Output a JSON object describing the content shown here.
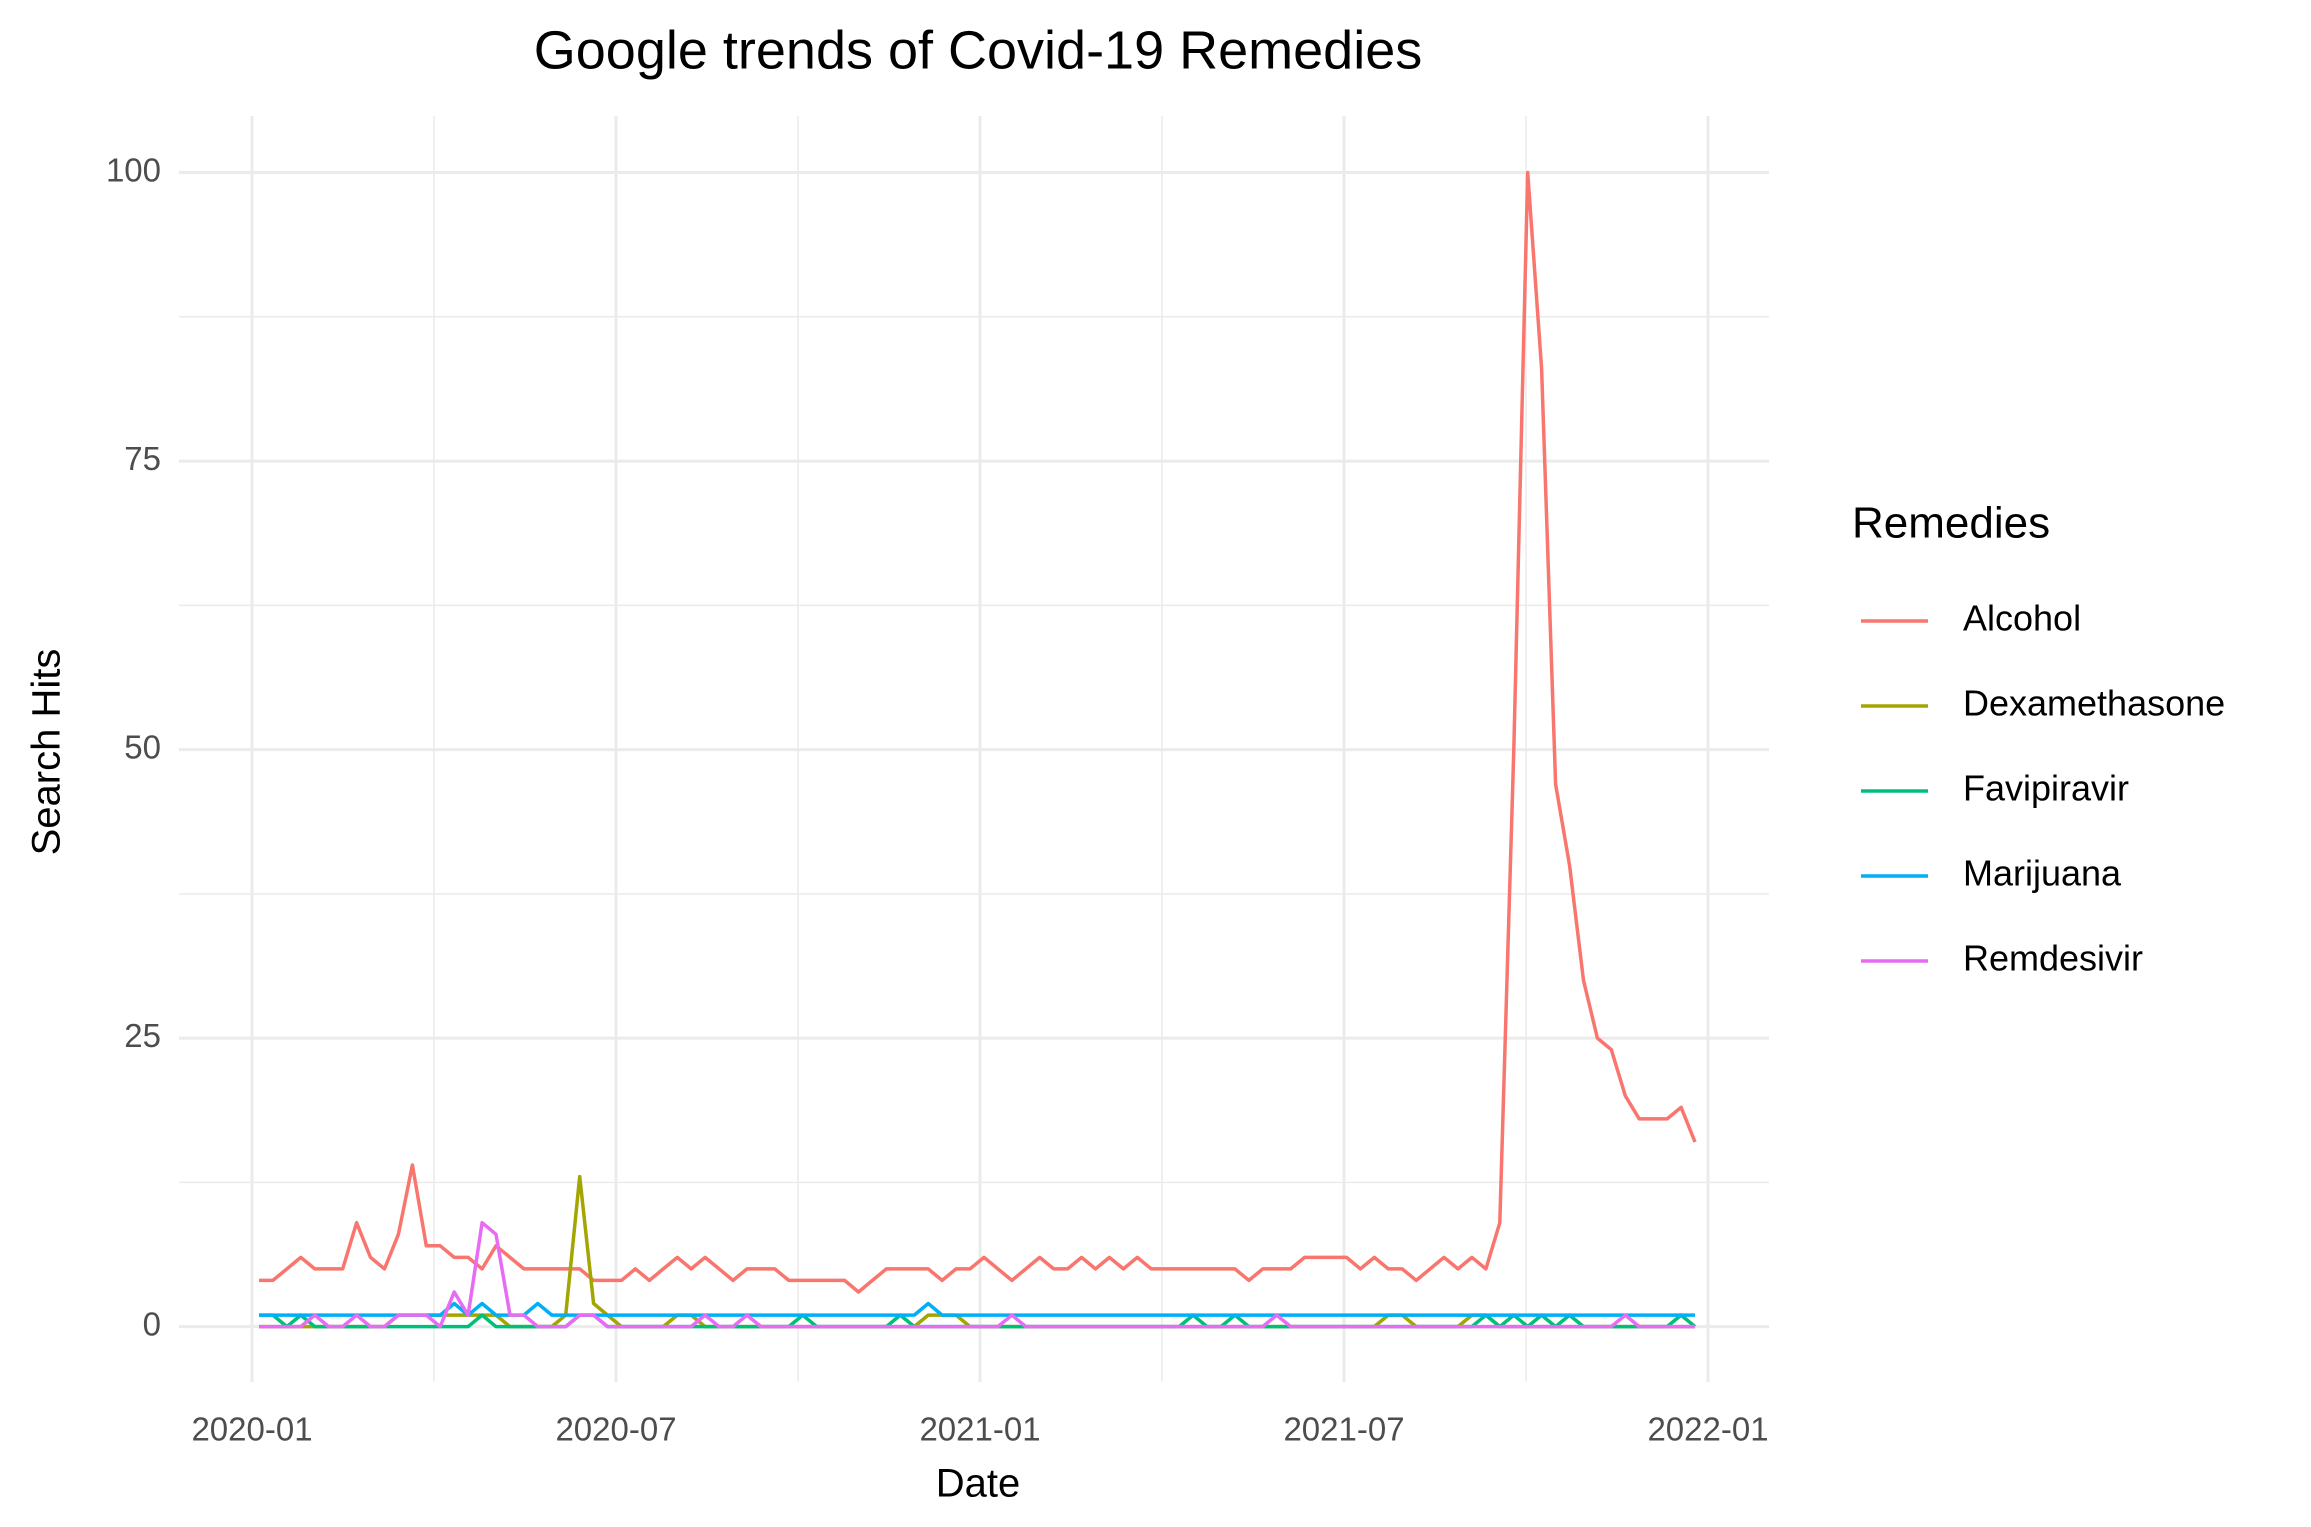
{
  "chart_data": {
    "type": "line",
    "title": "Google trends of Covid-19 Remedies",
    "x_label": "Date",
    "y_label": "Search Hits",
    "legend_title": "Remedies",
    "legend": "right",
    "grid": true,
    "x": [
      "2020-01",
      "2020-01",
      "2020-01",
      "2020-01",
      "2020-02",
      "2020-02",
      "2020-02",
      "2020-02",
      "2020-03",
      "2020-03",
      "2020-03",
      "2020-03",
      "2020-03",
      "2020-04",
      "2020-04",
      "2020-04",
      "2020-04",
      "2020-05",
      "2020-05",
      "2020-05",
      "2020-05",
      "2020-05",
      "2020-06",
      "2020-06",
      "2020-06",
      "2020-06",
      "2020-07",
      "2020-07",
      "2020-07",
      "2020-07",
      "2020-08",
      "2020-08",
      "2020-08",
      "2020-08",
      "2020-08",
      "2020-09",
      "2020-09",
      "2020-09",
      "2020-09",
      "2020-10",
      "2020-10",
      "2020-10",
      "2020-10",
      "2020-11",
      "2020-11",
      "2020-11",
      "2020-11",
      "2020-11",
      "2020-12",
      "2020-12",
      "2020-12",
      "2020-12",
      "2021-01",
      "2021-01",
      "2021-01",
      "2021-01",
      "2021-01",
      "2021-02",
      "2021-02",
      "2021-02",
      "2021-02",
      "2021-03",
      "2021-03",
      "2021-03",
      "2021-03",
      "2021-04",
      "2021-04",
      "2021-04",
      "2021-04",
      "2021-05",
      "2021-05",
      "2021-05",
      "2021-05",
      "2021-05",
      "2021-06",
      "2021-06",
      "2021-06",
      "2021-06",
      "2021-07",
      "2021-07",
      "2021-07",
      "2021-07",
      "2021-08",
      "2021-08",
      "2021-08",
      "2021-08",
      "2021-08",
      "2021-09",
      "2021-09",
      "2021-09",
      "2021-09",
      "2021-10",
      "2021-10",
      "2021-10",
      "2021-10",
      "2021-10",
      "2021-11",
      "2021-11",
      "2021-11",
      "2021-11",
      "2021-12",
      "2021-12",
      "2021-12",
      "2021-12"
    ],
    "xlim": [
      "2020-01",
      "2022-01"
    ],
    "xticks": [
      "2020-01",
      "2020-07",
      "2021-01",
      "2021-07",
      "2022-01"
    ],
    "ylim": [
      -4.8,
      104.9
    ],
    "yticks": [
      0,
      25,
      50,
      75,
      100
    ],
    "series": [
      {
        "name": "Alcohol",
        "color": "#F8766D",
        "values": [
          4,
          4,
          5,
          6,
          5,
          5,
          5,
          9,
          6,
          5,
          8,
          14,
          7,
          7,
          6,
          6,
          5,
          7,
          6,
          5,
          5,
          5,
          5,
          5,
          4,
          4,
          4,
          5,
          4,
          5,
          6,
          5,
          6,
          5,
          4,
          5,
          5,
          5,
          4,
          4,
          4,
          4,
          4,
          3,
          4,
          5,
          5,
          5,
          5,
          4,
          5,
          5,
          6,
          5,
          4,
          5,
          6,
          5,
          5,
          6,
          5,
          6,
          5,
          6,
          5,
          5,
          5,
          5,
          5,
          5,
          5,
          4,
          5,
          5,
          5,
          6,
          6,
          6,
          6,
          5,
          6,
          5,
          5,
          4,
          5,
          6,
          5,
          6,
          5,
          9,
          50,
          100,
          83,
          47,
          40,
          30,
          25,
          24,
          20,
          18,
          18,
          18,
          19,
          16
        ]
      },
      {
        "name": "Dexamethasone",
        "color": "#A3A500",
        "values": [
          0,
          0,
          0,
          0,
          0,
          0,
          0,
          0,
          0,
          0,
          1,
          1,
          1,
          1,
          1,
          1,
          1,
          1,
          0,
          0,
          0,
          0,
          1,
          13,
          2,
          1,
          0,
          0,
          0,
          0,
          1,
          1,
          0,
          0,
          0,
          0,
          0,
          0,
          0,
          0,
          0,
          0,
          0,
          0,
          0,
          0,
          0,
          0,
          1,
          1,
          1,
          0,
          0,
          0,
          0,
          0,
          0,
          0,
          0,
          0,
          0,
          0,
          0,
          0,
          0,
          0,
          0,
          0,
          0,
          0,
          0,
          0,
          0,
          0,
          0,
          0,
          0,
          0,
          0,
          0,
          0,
          1,
          1,
          0,
          0,
          0,
          0,
          1,
          1,
          0,
          0,
          0,
          0,
          0,
          0,
          0,
          0,
          0,
          0,
          0,
          0,
          0,
          0,
          0
        ]
      },
      {
        "name": "Favipiravir",
        "color": "#00BF7D",
        "values": [
          1,
          1,
          0,
          1,
          0,
          0,
          0,
          0,
          0,
          0,
          0,
          0,
          0,
          0,
          0,
          0,
          1,
          0,
          0,
          0,
          0,
          0,
          0,
          1,
          1,
          0,
          0,
          0,
          0,
          0,
          0,
          0,
          0,
          0,
          0,
          0,
          0,
          0,
          0,
          1,
          0,
          0,
          0,
          0,
          0,
          0,
          1,
          0,
          0,
          0,
          0,
          0,
          0,
          0,
          0,
          0,
          0,
          0,
          0,
          0,
          0,
          0,
          0,
          0,
          0,
          0,
          0,
          1,
          0,
          0,
          1,
          0,
          0,
          0,
          0,
          0,
          0,
          0,
          0,
          0,
          0,
          0,
          0,
          0,
          0,
          0,
          0,
          0,
          1,
          0,
          1,
          0,
          1,
          0,
          1,
          0,
          0,
          0,
          0,
          0,
          0,
          0,
          1,
          0
        ]
      },
      {
        "name": "Marijuana",
        "color": "#00B0F6",
        "values": [
          1,
          1,
          1,
          1,
          1,
          1,
          1,
          1,
          1,
          1,
          1,
          1,
          1,
          1,
          2,
          1,
          2,
          1,
          1,
          1,
          2,
          1,
          1,
          1,
          1,
          1,
          1,
          1,
          1,
          1,
          1,
          1,
          1,
          1,
          1,
          1,
          1,
          1,
          1,
          1,
          1,
          1,
          1,
          1,
          1,
          1,
          1,
          1,
          2,
          1,
          1,
          1,
          1,
          1,
          1,
          1,
          1,
          1,
          1,
          1,
          1,
          1,
          1,
          1,
          1,
          1,
          1,
          1,
          1,
          1,
          1,
          1,
          1,
          1,
          1,
          1,
          1,
          1,
          1,
          1,
          1,
          1,
          1,
          1,
          1,
          1,
          1,
          1,
          1,
          1,
          1,
          1,
          1,
          1,
          1,
          1,
          1,
          1,
          1,
          1,
          1,
          1,
          1,
          1
        ]
      },
      {
        "name": "Remdesivir",
        "color": "#E76BF3",
        "values": [
          0,
          0,
          0,
          0,
          1,
          0,
          0,
          1,
          0,
          0,
          1,
          1,
          1,
          0,
          3,
          1,
          9,
          8,
          1,
          1,
          0,
          0,
          0,
          1,
          1,
          0,
          0,
          0,
          0,
          0,
          0,
          0,
          1,
          0,
          0,
          1,
          0,
          0,
          0,
          0,
          0,
          0,
          0,
          0,
          0,
          0,
          0,
          0,
          0,
          0,
          0,
          0,
          0,
          0,
          1,
          0,
          0,
          0,
          0,
          0,
          0,
          0,
          0,
          0,
          0,
          0,
          0,
          0,
          0,
          0,
          0,
          0,
          0,
          1,
          0,
          0,
          0,
          0,
          0,
          0,
          0,
          0,
          0,
          0,
          0,
          0,
          0,
          0,
          0,
          0,
          0,
          0,
          0,
          0,
          0,
          0,
          0,
          0,
          1,
          0,
          0,
          0,
          0,
          0
        ]
      }
    ]
  }
}
